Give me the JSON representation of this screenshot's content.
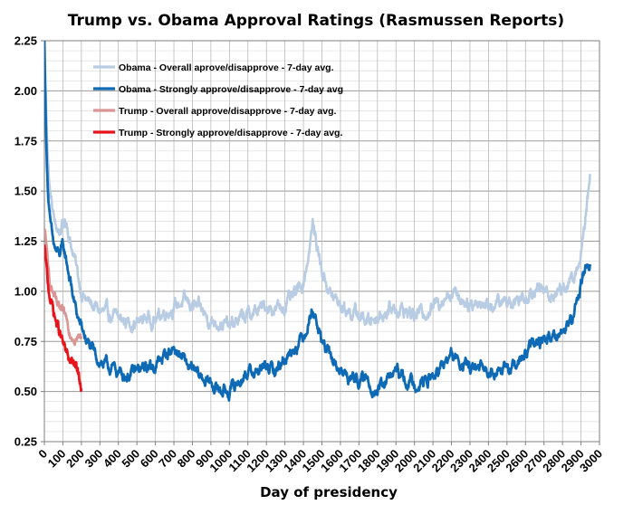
{
  "chart_data": {
    "type": "line",
    "title": "Trump vs. Obama Approval Ratings (Rasmussen Reports)",
    "xlabel": "Day of presidency",
    "ylabel": "",
    "xlim": [
      0,
      3000
    ],
    "ylim": [
      0.25,
      2.25
    ],
    "x_ticks": [
      0,
      100,
      200,
      300,
      400,
      500,
      600,
      700,
      800,
      900,
      1000,
      1100,
      1200,
      1300,
      1400,
      1500,
      1600,
      1700,
      1800,
      1900,
      2000,
      2100,
      2200,
      2300,
      2400,
      2500,
      2600,
      2700,
      2800,
      2900,
      3000
    ],
    "y_ticks": [
      "0.25",
      "0.50",
      "0.75",
      "1.00",
      "1.25",
      "1.50",
      "1.75",
      "2.00",
      "2.25"
    ],
    "grid": true,
    "legend_position": "top-left",
    "series": [
      {
        "name": "Obama - Overall aprove/disapprove - 7-day avg.",
        "color": "#b8cce4",
        "x": [
          0,
          10,
          20,
          30,
          45,
          60,
          80,
          100,
          120,
          140,
          160,
          180,
          200,
          230,
          260,
          300,
          350,
          400,
          450,
          500,
          550,
          600,
          650,
          700,
          750,
          800,
          850,
          900,
          950,
          1000,
          1050,
          1100,
          1150,
          1200,
          1250,
          1300,
          1350,
          1400,
          1430,
          1450,
          1470,
          1500,
          1550,
          1600,
          1650,
          1700,
          1750,
          1800,
          1850,
          1900,
          1950,
          2000,
          2050,
          2100,
          2150,
          2200,
          2250,
          2300,
          2350,
          2400,
          2450,
          2500,
          2550,
          2600,
          2650,
          2700,
          2750,
          2800,
          2850,
          2880,
          2900,
          2920,
          2935,
          2950
        ],
        "y": [
          2.25,
          1.9,
          1.65,
          1.5,
          1.4,
          1.32,
          1.3,
          1.33,
          1.35,
          1.25,
          1.18,
          1.08,
          1.0,
          0.95,
          0.93,
          0.9,
          0.88,
          0.86,
          0.85,
          0.84,
          0.87,
          0.86,
          0.9,
          0.92,
          0.95,
          0.93,
          0.9,
          0.85,
          0.85,
          0.82,
          0.86,
          0.88,
          0.9,
          0.93,
          0.91,
          0.93,
          0.97,
          1.05,
          1.2,
          1.33,
          1.25,
          1.1,
          0.98,
          0.93,
          0.9,
          0.88,
          0.85,
          0.88,
          0.9,
          0.92,
          0.9,
          0.88,
          0.9,
          0.92,
          0.97,
          1.0,
          0.97,
          0.94,
          0.95,
          0.93,
          0.94,
          0.95,
          0.96,
          0.98,
          1.02,
          1.0,
          0.98,
          1.02,
          1.05,
          1.1,
          1.2,
          1.3,
          1.45,
          1.58
        ]
      },
      {
        "name": "Obama - Strongly approve/disapprove - 7-day avg",
        "color": "#0e6ab4",
        "x": [
          0,
          10,
          20,
          30,
          45,
          60,
          80,
          100,
          120,
          140,
          160,
          180,
          200,
          230,
          260,
          300,
          350,
          400,
          450,
          500,
          550,
          600,
          650,
          700,
          750,
          800,
          850,
          900,
          950,
          1000,
          1050,
          1100,
          1150,
          1200,
          1250,
          1300,
          1350,
          1400,
          1430,
          1450,
          1470,
          1500,
          1550,
          1600,
          1650,
          1700,
          1750,
          1800,
          1850,
          1900,
          1950,
          2000,
          2050,
          2100,
          2150,
          2200,
          2250,
          2300,
          2350,
          2400,
          2450,
          2500,
          2550,
          2600,
          2650,
          2700,
          2750,
          2800,
          2850,
          2880,
          2900,
          2920,
          2935,
          2950
        ],
        "y": [
          2.25,
          1.75,
          1.5,
          1.35,
          1.25,
          1.2,
          1.18,
          1.22,
          1.15,
          1.05,
          0.95,
          0.87,
          0.82,
          0.75,
          0.7,
          0.65,
          0.62,
          0.6,
          0.58,
          0.6,
          0.62,
          0.63,
          0.68,
          0.72,
          0.66,
          0.6,
          0.57,
          0.54,
          0.51,
          0.5,
          0.55,
          0.6,
          0.6,
          0.62,
          0.6,
          0.67,
          0.72,
          0.78,
          0.86,
          0.92,
          0.85,
          0.75,
          0.66,
          0.6,
          0.57,
          0.56,
          0.55,
          0.5,
          0.55,
          0.6,
          0.56,
          0.54,
          0.55,
          0.57,
          0.62,
          0.68,
          0.64,
          0.62,
          0.6,
          0.61,
          0.62,
          0.6,
          0.63,
          0.68,
          0.74,
          0.76,
          0.78,
          0.8,
          0.85,
          0.95,
          1.05,
          1.1,
          1.12,
          1.13
        ]
      },
      {
        "name": "Trump - Overall approve/disapprove - 7-day avg.",
        "color": "#d99594",
        "x": [
          0,
          10,
          20,
          30,
          45,
          60,
          80,
          100,
          120,
          140,
          160,
          180,
          200
        ],
        "y": [
          1.3,
          1.25,
          1.1,
          1.05,
          1.0,
          0.95,
          0.9,
          0.88,
          0.86,
          0.8,
          0.78,
          0.77,
          0.76
        ]
      },
      {
        "name": "Trump - Strongly approve/disapprove - 7-day avg.",
        "color": "#e8141b",
        "x": [
          0,
          10,
          20,
          30,
          45,
          60,
          80,
          100,
          120,
          140,
          160,
          180,
          200
        ],
        "y": [
          1.22,
          1.12,
          1.02,
          0.98,
          0.92,
          0.86,
          0.8,
          0.74,
          0.68,
          0.65,
          0.63,
          0.6,
          0.52
        ]
      }
    ]
  }
}
